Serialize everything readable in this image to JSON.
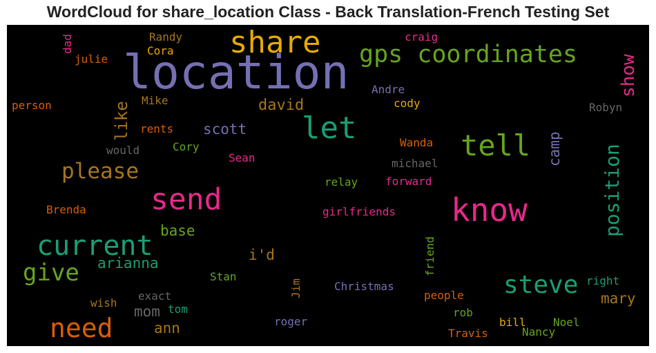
{
  "title": "WordCloud for share_location Class - Back Translation-French Testing Set",
  "palette": {
    "purple": "#7570b3",
    "orange": "#d95f02",
    "teal": "#1b9e77",
    "pink": "#e7298a",
    "green": "#66a61e",
    "gold": "#e6ab02",
    "brown": "#a6761d",
    "gray": "#666666"
  },
  "words": [
    {
      "text": "location",
      "color": "#7570b3"
    },
    {
      "text": "share",
      "color": "#e6ab02"
    },
    {
      "text": "gps coordinates",
      "color": "#66a61e"
    },
    {
      "text": "let",
      "color": "#1b9e77"
    },
    {
      "text": "know",
      "color": "#e7298a"
    },
    {
      "text": "send",
      "color": "#e7298a"
    },
    {
      "text": "current",
      "color": "#1b9e77"
    },
    {
      "text": "tell",
      "color": "#66a61e"
    },
    {
      "text": "steve",
      "color": "#1b9e77"
    },
    {
      "text": "need",
      "color": "#d95f02"
    },
    {
      "text": "please",
      "color": "#a6761d"
    },
    {
      "text": "give",
      "color": "#66a61e"
    },
    {
      "text": "position",
      "color": "#1b9e77"
    },
    {
      "text": "show",
      "color": "#e7298a"
    },
    {
      "text": "like",
      "color": "#a6761d"
    },
    {
      "text": "david",
      "color": "#a6761d"
    },
    {
      "text": "scott",
      "color": "#7570b3"
    },
    {
      "text": "camp",
      "color": "#7570b3"
    },
    {
      "text": "arianna",
      "color": "#1b9e77"
    },
    {
      "text": "mary",
      "color": "#a6761d"
    },
    {
      "text": "base",
      "color": "#66a61e"
    },
    {
      "text": "i'd",
      "color": "#a6761d"
    },
    {
      "text": "mom",
      "color": "#666666"
    },
    {
      "text": "ann",
      "color": "#a6761d"
    },
    {
      "text": "dad",
      "color": "#e7298a"
    },
    {
      "text": "Randy",
      "color": "#a6761d"
    },
    {
      "text": "Cora",
      "color": "#e6ab02"
    },
    {
      "text": "julie",
      "color": "#d95f02"
    },
    {
      "text": "craig",
      "color": "#e7298a"
    },
    {
      "text": "Andre",
      "color": "#7570b3"
    },
    {
      "text": "cody",
      "color": "#e6ab02"
    },
    {
      "text": "Robyn",
      "color": "#666666"
    },
    {
      "text": "person",
      "color": "#d95f02"
    },
    {
      "text": "Mike",
      "color": "#a6761d"
    },
    {
      "text": "rents",
      "color": "#d95f02"
    },
    {
      "text": "would",
      "color": "#666666"
    },
    {
      "text": "Cory",
      "color": "#66a61e"
    },
    {
      "text": "Sean",
      "color": "#e7298a"
    },
    {
      "text": "Wanda",
      "color": "#d95f02"
    },
    {
      "text": "michael",
      "color": "#666666"
    },
    {
      "text": "relay",
      "color": "#66a61e"
    },
    {
      "text": "forward",
      "color": "#e7298a"
    },
    {
      "text": "Brenda",
      "color": "#d95f02"
    },
    {
      "text": "girlfriends",
      "color": "#e7298a"
    },
    {
      "text": "friend",
      "color": "#66a61e"
    },
    {
      "text": "Stan",
      "color": "#66a61e"
    },
    {
      "text": "Jim",
      "color": "#a6761d"
    },
    {
      "text": "Christmas",
      "color": "#7570b3"
    },
    {
      "text": "exact",
      "color": "#666666"
    },
    {
      "text": "wish",
      "color": "#a6761d"
    },
    {
      "text": "tom",
      "color": "#1b9e77"
    },
    {
      "text": "people",
      "color": "#d95f02"
    },
    {
      "text": "right",
      "color": "#1b9e77"
    },
    {
      "text": "rob",
      "color": "#66a61e"
    },
    {
      "text": "roger",
      "color": "#7570b3"
    },
    {
      "text": "bill",
      "color": "#e6ab02"
    },
    {
      "text": "Noel",
      "color": "#66a61e"
    },
    {
      "text": "Travis",
      "color": "#d95f02"
    },
    {
      "text": "Nancy",
      "color": "#66a61e"
    }
  ]
}
